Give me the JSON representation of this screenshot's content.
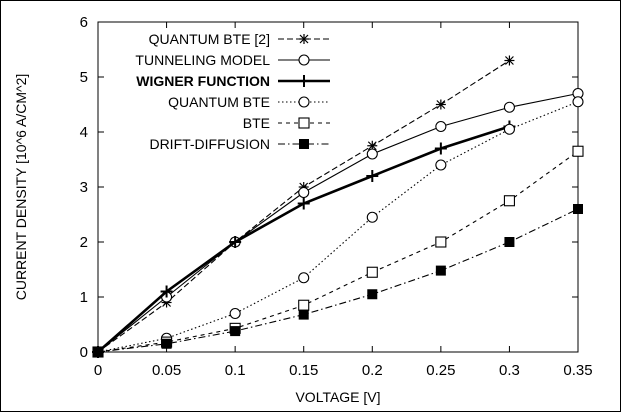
{
  "chart_data": {
    "type": "line",
    "xlabel": "VOLTAGE [V]",
    "ylabel": "CURRENT DENSITY [10^6 A/CM^2]",
    "xlim": [
      0,
      0.35
    ],
    "ylim": [
      0,
      6
    ],
    "x_ticks": [
      "0",
      "0.05",
      "0.1",
      "0.15",
      "0.2",
      "0.25",
      "0.3",
      "0.35"
    ],
    "y_ticks": [
      "0",
      "1",
      "2",
      "3",
      "4",
      "5",
      "6"
    ],
    "grid": false,
    "legend_position": "top-left",
    "series": [
      {
        "name": "QUANTUM BTE [2]",
        "marker": "star",
        "line": "dashed",
        "color": "#000000",
        "points": [
          [
            0,
            0
          ],
          [
            0.05,
            0.9
          ],
          [
            0.1,
            2.0
          ],
          [
            0.15,
            3.0
          ],
          [
            0.2,
            3.75
          ],
          [
            0.25,
            4.5
          ],
          [
            0.3,
            5.3
          ]
        ]
      },
      {
        "name": "TUNNELING MODEL",
        "marker": "circle",
        "line": "solid",
        "color": "#000000",
        "points": [
          [
            0,
            0
          ],
          [
            0.05,
            1.0
          ],
          [
            0.1,
            2.0
          ],
          [
            0.15,
            2.9
          ],
          [
            0.2,
            3.6
          ],
          [
            0.25,
            4.1
          ],
          [
            0.3,
            4.45
          ],
          [
            0.35,
            4.7
          ]
        ]
      },
      {
        "name": "WIGNER FUNCTION",
        "marker": "plus",
        "line": "solid-thick",
        "color": "#000000",
        "points": [
          [
            0,
            0
          ],
          [
            0.05,
            1.1
          ],
          [
            0.1,
            2.0
          ],
          [
            0.15,
            2.7
          ],
          [
            0.2,
            3.2
          ],
          [
            0.25,
            3.7
          ],
          [
            0.3,
            4.1
          ]
        ]
      },
      {
        "name": "QUANTUM BTE",
        "marker": "circle",
        "line": "dotted",
        "color": "#000000",
        "points": [
          [
            0,
            0
          ],
          [
            0.05,
            0.25
          ],
          [
            0.1,
            0.7
          ],
          [
            0.15,
            1.35
          ],
          [
            0.2,
            2.45
          ],
          [
            0.25,
            3.4
          ],
          [
            0.3,
            4.05
          ],
          [
            0.35,
            4.55
          ]
        ]
      },
      {
        "name": "BTE",
        "marker": "square-open",
        "line": "short-dashed",
        "color": "#000000",
        "points": [
          [
            0,
            0
          ],
          [
            0.05,
            0.18
          ],
          [
            0.1,
            0.43
          ],
          [
            0.15,
            0.85
          ],
          [
            0.2,
            1.45
          ],
          [
            0.25,
            2.0
          ],
          [
            0.3,
            2.75
          ],
          [
            0.35,
            3.65
          ]
        ]
      },
      {
        "name": "DRIFT-DIFFUSION",
        "marker": "square-filled",
        "line": "dash-dot",
        "color": "#000000",
        "points": [
          [
            0,
            0
          ],
          [
            0.05,
            0.15
          ],
          [
            0.1,
            0.38
          ],
          [
            0.15,
            0.68
          ],
          [
            0.2,
            1.05
          ],
          [
            0.25,
            1.48
          ],
          [
            0.3,
            2.0
          ],
          [
            0.35,
            2.6
          ]
        ]
      }
    ]
  }
}
